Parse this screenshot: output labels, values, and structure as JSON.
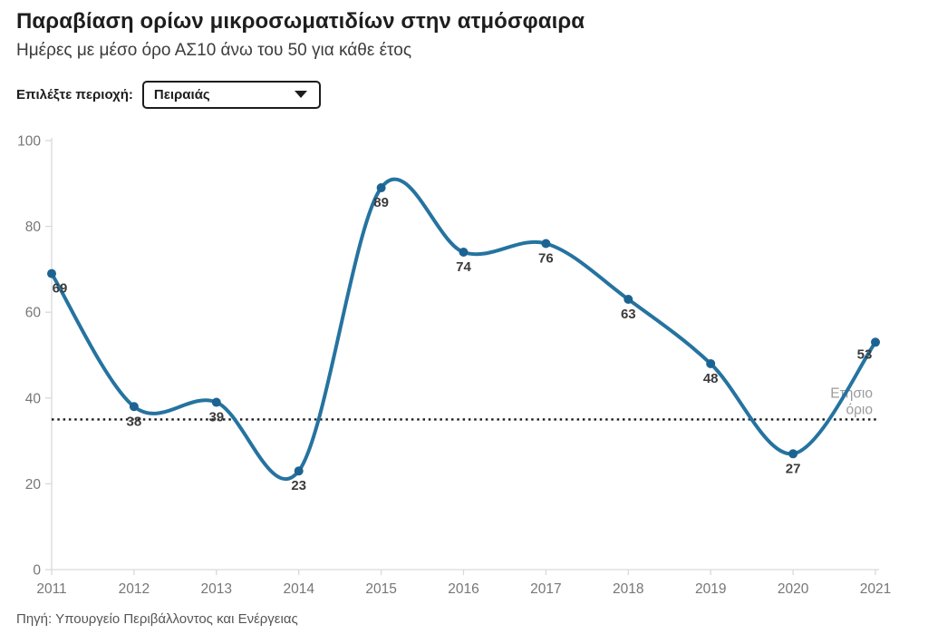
{
  "header": {
    "title": "Παραβίαση ορίων μικροσωματιδίων στην ατμόσφαιρα",
    "subtitle": "Ημέρες με μέσο όρο ΑΣ10 άνω του 50 για κάθε έτος"
  },
  "controls": {
    "label": "Επιλέξτε περιοχή:",
    "selected_region": "Πειραιάς",
    "dropdown_icon": "caret-down-icon"
  },
  "footer": {
    "source": "Πηγή: Υπουργείο Περιβάλλοντος και Ενέργειας"
  },
  "colors": {
    "line": "#2573a0",
    "marker": "#1d6392",
    "threshold": "#1a1a1a",
    "axis": "#d9d9d9",
    "tick_label": "#767676",
    "value_label": "#3b3b3b",
    "annotation": "#9b9b9b"
  },
  "chart_data": {
    "type": "line",
    "x": [
      2011,
      2012,
      2013,
      2014,
      2015,
      2016,
      2017,
      2018,
      2019,
      2020,
      2021
    ],
    "series": [
      {
        "name": "Πειραιάς",
        "values": [
          69,
          38,
          39,
          23,
          89,
          74,
          76,
          63,
          48,
          27,
          53
        ]
      }
    ],
    "title": "Παραβίαση ορίων μικροσωματιδίων στην ατμόσφαιρα",
    "xlabel": "",
    "ylabel": "",
    "ylim": [
      0,
      100
    ],
    "yticks": [
      0,
      20,
      40,
      60,
      80,
      100
    ],
    "grid": false,
    "legend": "none",
    "data_labels": true,
    "smooth": true,
    "threshold": {
      "value": 35,
      "label": "Ετήσιο όριο",
      "label_lines": [
        "Ετήσιο",
        "όριο"
      ]
    }
  }
}
